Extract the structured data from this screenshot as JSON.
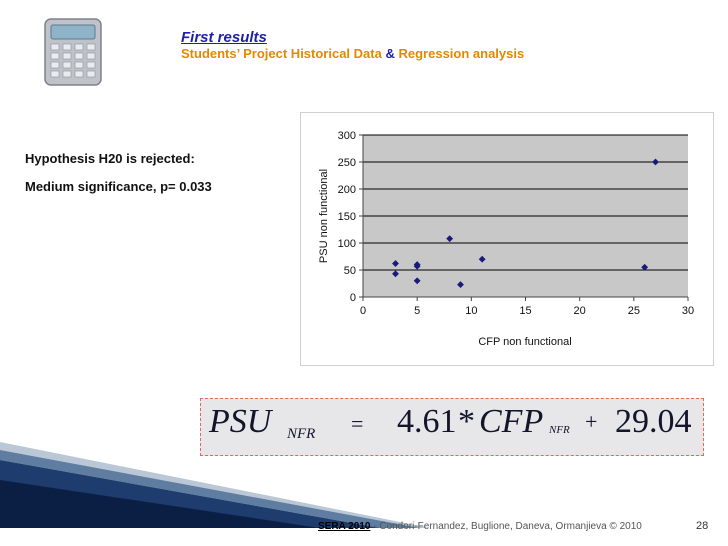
{
  "header": {
    "title": "First results",
    "subtitle_part1": "Students’ Project Historical Data",
    "subtitle_amp": "&",
    "subtitle_part2": "Regression analysis"
  },
  "hypothesis": {
    "line1": "Hypothesis H20 is  rejected:",
    "line2": "Medium significance, p= 0.033"
  },
  "chart_data": {
    "type": "scatter",
    "xlabel": "CFP non functional",
    "ylabel": "PSU non functional",
    "xlim": [
      0,
      30
    ],
    "ylim": [
      0,
      300
    ],
    "xticks": [
      "0",
      "5",
      "10",
      "15",
      "20",
      "25",
      "30"
    ],
    "yticks": [
      "0",
      "50",
      "100",
      "150",
      "200",
      "250",
      "300"
    ],
    "grid": "horizontal",
    "legend": "none",
    "series": [
      {
        "color": "#1a1a7a",
        "points": [
          [
            3,
            62
          ],
          [
            3,
            43
          ],
          [
            5,
            60
          ],
          [
            5,
            57
          ],
          [
            5,
            30
          ],
          [
            8,
            108
          ],
          [
            9,
            23
          ],
          [
            11,
            70
          ],
          [
            26,
            55
          ],
          [
            27,
            250
          ]
        ]
      }
    ]
  },
  "equation": {
    "lhs": "PSU",
    "lhs_sub": "NFR",
    "eq": "=",
    "coef": "4.61",
    "mult": "*",
    "var": "CFP",
    "var_sub": "NFR",
    "plus": "+",
    "intercept": "29.04"
  },
  "footer": {
    "sera": "SERA 2010",
    "citation": " - Condori-Fernandez, Buglione, Daneva, Ormanjieva © 2010",
    "page": "28"
  }
}
